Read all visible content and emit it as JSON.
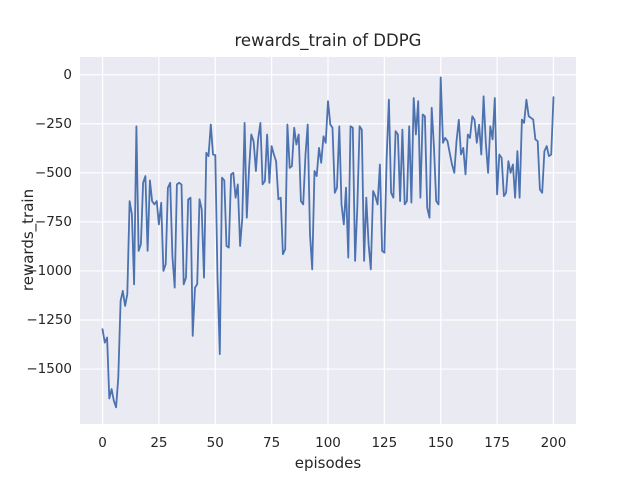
{
  "figure": {
    "background": "#ffffff"
  },
  "chart_data": {
    "type": "line",
    "title": "rewards_train of DDPG",
    "xlabel": "episodes",
    "ylabel": "rewards_train",
    "legend_position": "none",
    "grid": true,
    "style": {
      "axes_background": "#EAEAF2",
      "grid_color": "#FFFFFF",
      "line_color": "#4C72B0",
      "text_color": "#262626",
      "line_width": 1.8
    },
    "xlim": [
      -10,
      210
    ],
    "ylim": [
      -1780,
      90
    ],
    "xticks": [
      0,
      25,
      50,
      75,
      100,
      125,
      150,
      175,
      200
    ],
    "yticks": [
      0,
      -250,
      -500,
      -750,
      -1000,
      -1250,
      -1500
    ],
    "x_start": 0,
    "x_step": 1,
    "values": [
      -1297,
      -1365,
      -1339,
      -1650,
      -1602,
      -1661,
      -1695,
      -1542,
      -1153,
      -1102,
      -1178,
      -1119,
      -644,
      -712,
      -1068,
      -263,
      -898,
      -864,
      -551,
      -517,
      -898,
      -539,
      -644,
      -661,
      -644,
      -763,
      -653,
      -1000,
      -966,
      -576,
      -551,
      -924,
      -1085,
      -559,
      -551,
      -560,
      -1068,
      -1034,
      -636,
      -627,
      -1331,
      -1085,
      -1068,
      -635,
      -686,
      -1034,
      -398,
      -415,
      -254,
      -407,
      -410,
      -1034,
      -1424,
      -525,
      -539,
      -873,
      -881,
      -508,
      -500,
      -627,
      -559,
      -873,
      -729,
      -246,
      -729,
      -475,
      -305,
      -339,
      -491,
      -330,
      -246,
      -559,
      -542,
      -305,
      -551,
      -364,
      -407,
      -441,
      -635,
      -627,
      -915,
      -890,
      -254,
      -475,
      -466,
      -271,
      -356,
      -305,
      -644,
      -661,
      -407,
      -254,
      -813,
      -992,
      -491,
      -517,
      -373,
      -449,
      -314,
      -347,
      -135,
      -254,
      -271,
      -602,
      -576,
      -263,
      -661,
      -763,
      -576,
      -932,
      -263,
      -271,
      -949,
      -678,
      -263,
      -280,
      -949,
      -627,
      -864,
      -992,
      -593,
      -619,
      -661,
      -458,
      -898,
      -907,
      -432,
      -127,
      -602,
      -627,
      -288,
      -305,
      -644,
      -280,
      -661,
      -644,
      -263,
      -652,
      -119,
      -305,
      -135,
      -627,
      -203,
      -212,
      -678,
      -729,
      -169,
      -373,
      -644,
      -661,
      -14,
      -347,
      -322,
      -339,
      -398,
      -458,
      -500,
      -340,
      -230,
      -407,
      -373,
      -508,
      -305,
      -322,
      -212,
      -230,
      -347,
      -255,
      -407,
      -110,
      -347,
      -500,
      -263,
      -330,
      -119,
      -610,
      -407,
      -424,
      -619,
      -602,
      -441,
      -500,
      -458,
      -627,
      -390,
      -627,
      -229,
      -246,
      -127,
      -212,
      -220,
      -229,
      -330,
      -339,
      -585,
      -602,
      -390,
      -364,
      -415,
      -407,
      -115
    ]
  }
}
